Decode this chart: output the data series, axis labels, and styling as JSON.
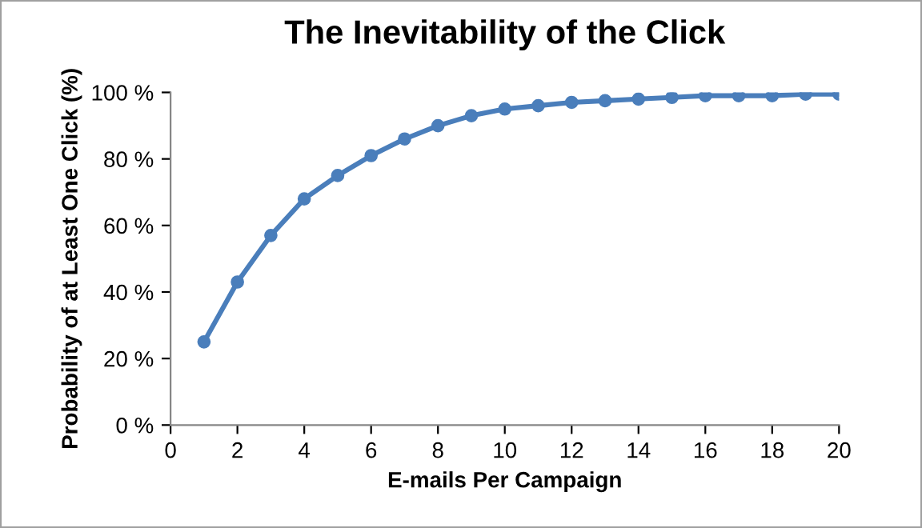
{
  "chart_data": {
    "type": "line",
    "title": "The Inevitability of the Click",
    "xlabel": "E-mails Per Campaign",
    "ylabel": "Probability of at Least One Click (%)",
    "x": [
      1,
      2,
      3,
      4,
      5,
      6,
      7,
      8,
      9,
      10,
      11,
      12,
      13,
      14,
      15,
      16,
      17,
      18,
      19,
      20
    ],
    "series": [
      {
        "color": "#4a7ebb",
        "values": [
          25,
          43,
          57,
          68,
          75,
          81,
          86,
          90,
          93,
          95,
          96,
          97,
          97.5,
          98,
          98.5,
          99,
          99,
          99,
          99.5,
          99.5
        ]
      }
    ],
    "xlim": [
      0,
      20
    ],
    "xticks": [
      0,
      2,
      4,
      6,
      8,
      10,
      12,
      14,
      16,
      18,
      20
    ],
    "ylim": [
      0,
      100
    ],
    "yticks": [
      {
        "value": 0,
        "label": "0 %"
      },
      {
        "value": 20,
        "label": "20 %"
      },
      {
        "value": 40,
        "label": "40 %"
      },
      {
        "value": 60,
        "label": "60 %"
      },
      {
        "value": 80,
        "label": "80 %"
      },
      {
        "value": 100,
        "label": "100 %"
      }
    ],
    "marker": "circle",
    "line_style": "solid",
    "grid": false,
    "legend": false
  }
}
